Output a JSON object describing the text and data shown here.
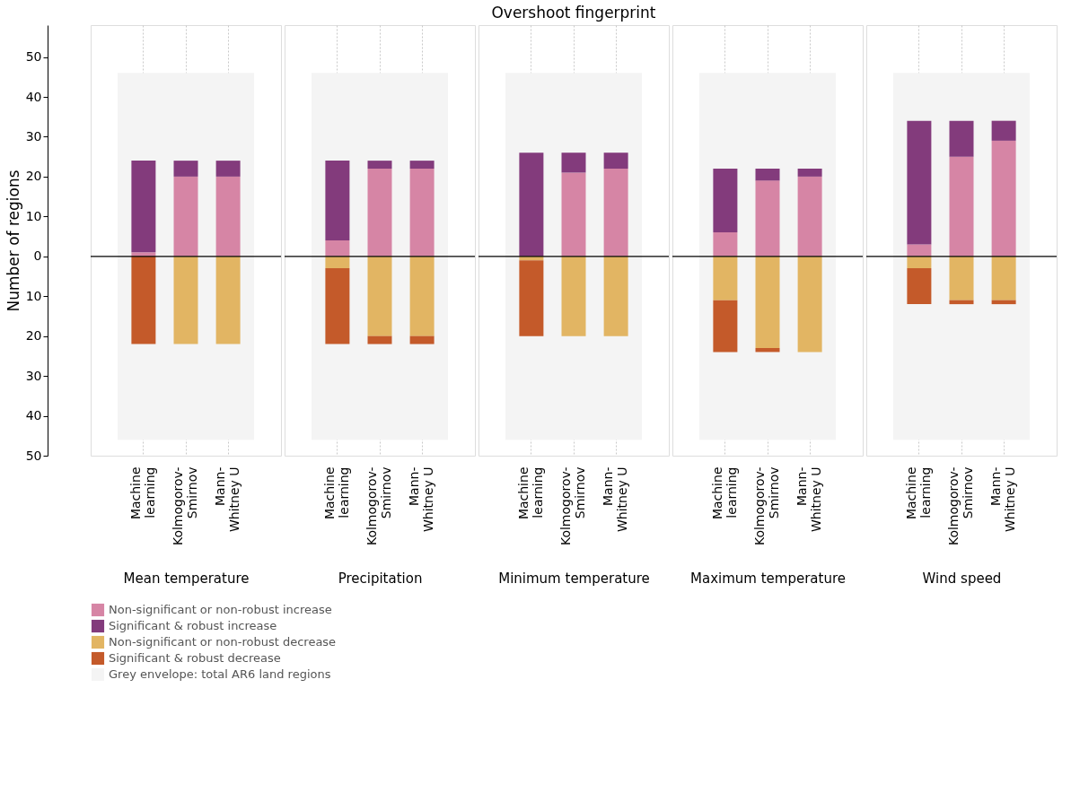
{
  "chart_data": [
    {
      "type": "bar",
      "stacked": true,
      "xlabel": "Mean temperature",
      "ylabel": "Number of regions",
      "categories": [
        "Machine learning",
        "Kolmogorov-Smirnov",
        "Mann-Whitney U"
      ],
      "series": [
        {
          "name": "Non-significant or non-robust increase",
          "color": "#d685a5",
          "values": [
            1,
            20,
            20
          ]
        },
        {
          "name": "Significant & robust increase",
          "color": "#833b7c",
          "values": [
            23,
            4,
            4
          ]
        },
        {
          "name": "Non-significant or non-robust decrease",
          "color": "#e2b563",
          "values": [
            0,
            -22,
            -22
          ]
        },
        {
          "name": "Significant & robust decrease",
          "color": "#c45a2a",
          "values": [
            -22,
            0,
            0
          ]
        }
      ],
      "ylim": [
        -50,
        58
      ],
      "yticks": [
        {
          "value": -50,
          "label": "50"
        },
        {
          "value": -40,
          "label": "40"
        },
        {
          "value": -30,
          "label": "30"
        },
        {
          "value": -20,
          "label": "20"
        },
        {
          "value": -10,
          "label": "10"
        },
        0,
        10,
        20,
        30,
        40,
        50
      ],
      "bands": [
        {
          "axis": "y",
          "from": -46,
          "to": 46,
          "label": "Grey envelope: total AR6 land regions",
          "color": "#f4f4f4"
        }
      ],
      "ref_lines": [
        {
          "axis": "y",
          "value": 0,
          "color": "#000000"
        }
      ],
      "grid": "x",
      "legend": "bottom"
    },
    {
      "type": "bar",
      "stacked": true,
      "xlabel": "Precipitation",
      "categories": [
        "Machine learning",
        "Kolmogorov-Smirnov",
        "Mann-Whitney U"
      ],
      "series": [
        {
          "name": "Non-significant or non-robust increase",
          "color": "#d685a5",
          "values": [
            4,
            22,
            22
          ]
        },
        {
          "name": "Significant & robust increase",
          "color": "#833b7c",
          "values": [
            20,
            2,
            2
          ]
        },
        {
          "name": "Non-significant or non-robust decrease",
          "color": "#e2b563",
          "values": [
            -3,
            -20,
            -20
          ]
        },
        {
          "name": "Significant & robust decrease",
          "color": "#c45a2a",
          "values": [
            -19,
            -2,
            -2
          ]
        }
      ],
      "ylim": [
        -50,
        58
      ],
      "tick_labels": "x",
      "bands": [
        {
          "axis": "y",
          "from": -46,
          "to": 46,
          "color": "#f4f4f4"
        }
      ],
      "ref_lines": [
        {
          "axis": "y",
          "value": 0,
          "color": "#000000"
        }
      ],
      "grid": "x",
      "legend": "bottom"
    },
    {
      "type": "bar",
      "stacked": true,
      "title": "Overshoot fingerprint",
      "xlabel": "Minimum temperature",
      "categories": [
        "Machine learning",
        "Kolmogorov-Smirnov",
        "Mann-Whitney U"
      ],
      "series": [
        {
          "name": "Non-significant or non-robust increase",
          "color": "#d685a5",
          "values": [
            0,
            21,
            22
          ]
        },
        {
          "name": "Significant & robust increase",
          "color": "#833b7c",
          "values": [
            26,
            5,
            4
          ]
        },
        {
          "name": "Non-significant or non-robust decrease",
          "color": "#e2b563",
          "values": [
            -1,
            -20,
            -20
          ]
        },
        {
          "name": "Significant & robust decrease",
          "color": "#c45a2a",
          "values": [
            -19,
            0,
            0
          ]
        }
      ],
      "ylim": [
        -50,
        58
      ],
      "tick_labels": "x",
      "bands": [
        {
          "axis": "y",
          "from": -46,
          "to": 46,
          "color": "#f4f4f4"
        }
      ],
      "ref_lines": [
        {
          "axis": "y",
          "value": 0,
          "color": "#000000"
        }
      ],
      "grid": "x",
      "legend": "bottom"
    },
    {
      "type": "bar",
      "stacked": true,
      "xlabel": "Maximum temperature",
      "categories": [
        "Machine learning",
        "Kolmogorov-Smirnov",
        "Mann-Whitney U"
      ],
      "series": [
        {
          "name": "Non-significant or non-robust increase",
          "color": "#d685a5",
          "values": [
            6,
            19,
            20
          ]
        },
        {
          "name": "Significant & robust increase",
          "color": "#833b7c",
          "values": [
            16,
            3,
            2
          ]
        },
        {
          "name": "Non-significant or non-robust decrease",
          "color": "#e2b563",
          "values": [
            -11,
            -23,
            -24
          ]
        },
        {
          "name": "Significant & robust decrease",
          "color": "#c45a2a",
          "values": [
            -13,
            -1,
            0
          ]
        }
      ],
      "ylim": [
        -50,
        58
      ],
      "tick_labels": "x",
      "bands": [
        {
          "axis": "y",
          "from": -46,
          "to": 46,
          "color": "#f4f4f4"
        }
      ],
      "ref_lines": [
        {
          "axis": "y",
          "value": 0,
          "color": "#000000"
        }
      ],
      "grid": "x",
      "legend": "bottom"
    },
    {
      "type": "bar",
      "stacked": true,
      "xlabel": "Wind speed",
      "categories": [
        "Machine learning",
        "Kolmogorov-Smirnov",
        "Mann-Whitney U"
      ],
      "series": [
        {
          "name": "Non-significant or non-robust increase",
          "color": "#d685a5",
          "values": [
            3,
            25,
            29
          ]
        },
        {
          "name": "Significant & robust increase",
          "color": "#833b7c",
          "values": [
            31,
            9,
            5
          ]
        },
        {
          "name": "Non-significant or non-robust decrease",
          "color": "#e2b563",
          "values": [
            -3,
            -11,
            -11
          ]
        },
        {
          "name": "Significant & robust decrease",
          "color": "#c45a2a",
          "values": [
            -9,
            -1,
            -1
          ]
        }
      ],
      "ylim": [
        -50,
        58
      ],
      "tick_labels": "x",
      "bands": [
        {
          "axis": "y",
          "from": -46,
          "to": 46,
          "color": "#f4f4f4"
        }
      ],
      "ref_lines": [
        {
          "axis": "y",
          "value": 0,
          "color": "#000000"
        }
      ],
      "grid": "x",
      "legend": "bottom"
    }
  ]
}
